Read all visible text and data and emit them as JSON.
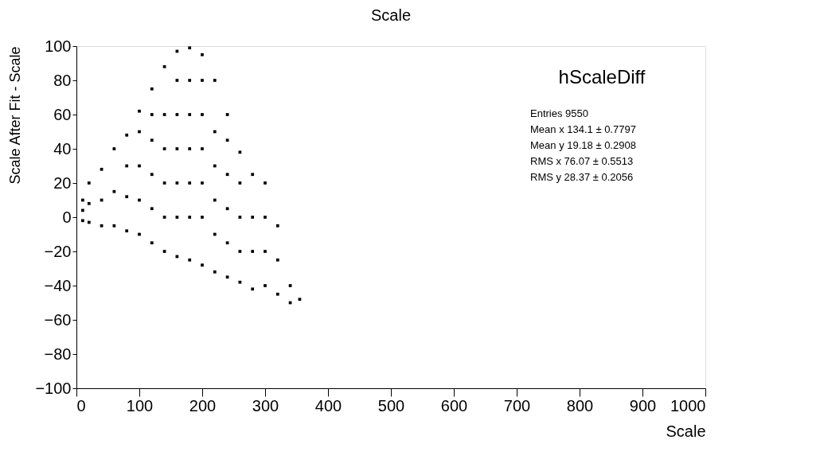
{
  "chart_data": {
    "type": "scatter",
    "title": "Scale",
    "xlabel": "Scale",
    "ylabel": "Scale After Fit - Scale",
    "annotations": [
      "hScaleDiff",
      "Entries 9550",
      "Mean x 134.1 ± 0.7797",
      "Mean y 19.18 ± 0.2908",
      "RMS x 76.07 ± 0.5513",
      "RMS y 28.37 ± 0.2056"
    ],
    "x": [
      10,
      10,
      10,
      20,
      20,
      20,
      40,
      40,
      40,
      60,
      60,
      60,
      80,
      80,
      80,
      80,
      100,
      100,
      100,
      100,
      100,
      120,
      120,
      120,
      120,
      120,
      120,
      140,
      140,
      140,
      140,
      140,
      140,
      160,
      160,
      160,
      160,
      160,
      160,
      160,
      180,
      180,
      180,
      180,
      180,
      180,
      180,
      200,
      200,
      200,
      200,
      200,
      200,
      200,
      220,
      220,
      220,
      220,
      220,
      220,
      240,
      240,
      240,
      240,
      240,
      240,
      260,
      260,
      260,
      260,
      260,
      280,
      280,
      280,
      280,
      300,
      300,
      300,
      300,
      320,
      320,
      320,
      340,
      340,
      355
    ],
    "values": [
      -2,
      4,
      10,
      -3,
      8,
      20,
      -5,
      10,
      28,
      -5,
      15,
      40,
      -8,
      12,
      30,
      48,
      -10,
      10,
      30,
      50,
      62,
      -15,
      5,
      25,
      45,
      60,
      75,
      -20,
      0,
      20,
      40,
      60,
      88,
      -23,
      0,
      20,
      40,
      60,
      80,
      97,
      -25,
      0,
      20,
      40,
      60,
      80,
      99,
      -28,
      0,
      20,
      40,
      60,
      80,
      95,
      -32,
      -10,
      10,
      30,
      50,
      80,
      -35,
      -15,
      5,
      25,
      45,
      60,
      -38,
      -20,
      0,
      20,
      38,
      -42,
      -20,
      0,
      25,
      -40,
      -20,
      0,
      20,
      -45,
      -25,
      -5,
      -50,
      -40,
      -48
    ],
    "color": "#000000",
    "marker": "square",
    "grid": false,
    "xlim": [
      0,
      1000
    ],
    "xticks": [
      0,
      100,
      200,
      300,
      400,
      500,
      600,
      700,
      800,
      900,
      1000
    ],
    "ylim": [
      -100,
      100
    ],
    "yticks": [
      -100,
      -80,
      -60,
      -40,
      -20,
      0,
      20,
      40,
      60,
      80,
      100
    ]
  }
}
